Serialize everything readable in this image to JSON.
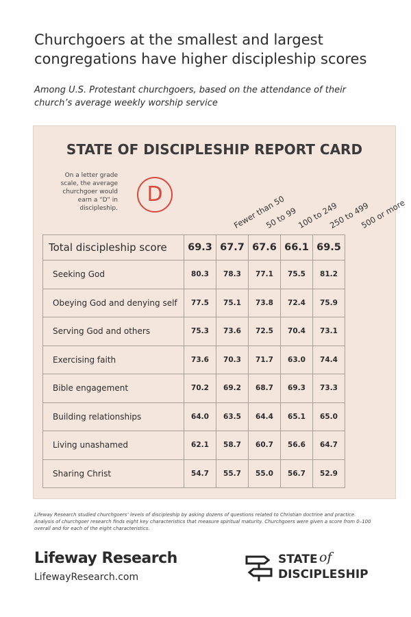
{
  "header": {
    "title": "Churchgoers at the smallest and largest congregations have higher discipleship scores",
    "subtitle": "Among U.S. Protestant churchgoers, based on the attendance of their church’s average weekly worship service"
  },
  "card": {
    "title": "STATE OF DISCIPLESHIP REPORT CARD",
    "note": "On a letter grade scale, the average churchgoer would earn a “D” in discipleship.",
    "grade": "D",
    "columns": [
      "Fewer than 50",
      "50 to 99",
      "100 to 249",
      "250 to 499",
      "500 or more"
    ]
  },
  "table": {
    "total": {
      "label": "Total discipleship score",
      "values": [
        "69.3",
        "67.7",
        "67.6",
        "66.1",
        "69.5"
      ]
    },
    "rows": [
      {
        "label": "Seeking God",
        "values": [
          "80.3",
          "78.3",
          "77.1",
          "75.5",
          "81.2"
        ]
      },
      {
        "label": "Obeying God and denying self",
        "values": [
          "77.5",
          "75.1",
          "73.8",
          "72.4",
          "75.9"
        ]
      },
      {
        "label": "Serving God and others",
        "values": [
          "75.3",
          "73.6",
          "72.5",
          "70.4",
          "73.1"
        ]
      },
      {
        "label": "Exercising faith",
        "values": [
          "73.6",
          "70.3",
          "71.7",
          "63.0",
          "74.4"
        ]
      },
      {
        "label": "Bible engagement",
        "values": [
          "70.2",
          "69.2",
          "68.7",
          "69.3",
          "73.3"
        ]
      },
      {
        "label": "Building relationships",
        "values": [
          "64.0",
          "63.5",
          "64.4",
          "65.1",
          "65.0"
        ]
      },
      {
        "label": "Living unashamed",
        "values": [
          "62.1",
          "58.7",
          "60.7",
          "56.6",
          "64.7"
        ]
      },
      {
        "label": "Sharing Christ",
        "values": [
          "54.7",
          "55.7",
          "55.0",
          "56.7",
          "52.9"
        ]
      }
    ]
  },
  "footnote": "Lifeway Research studied churchgoers’ levels of discipleship by asking dozens of questions related to Christian doctrine and practice. Analysis of churchgoer research finds eight key characteristics that measure spiritual maturity. Churchgoers were given a score from 0–100 overall and for each of the eight characteristics.",
  "footer": {
    "brand": "Lifeway Research",
    "url": "LifewayResearch.com",
    "logo_top": "STATE",
    "logo_of": "of",
    "logo_bottom": "DISCIPLESHIP"
  }
}
